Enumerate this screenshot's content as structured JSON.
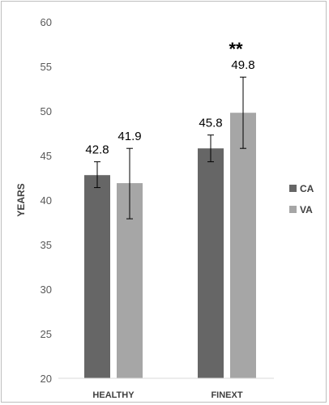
{
  "chart_data": {
    "type": "bar",
    "title": "",
    "xlabel": "",
    "ylabel": "YEARS",
    "ylim": [
      20,
      60
    ],
    "yticks": [
      20,
      25,
      30,
      35,
      40,
      45,
      50,
      55,
      60
    ],
    "grid": false,
    "legend_position": "right",
    "categories": [
      "HEALTHY",
      "FINEXT"
    ],
    "series": [
      {
        "name": "CA",
        "color": "#666666",
        "values": [
          42.8,
          45.8
        ],
        "error": [
          [
            41.4,
            44.3
          ],
          [
            44.3,
            47.3
          ]
        ],
        "labels": [
          "42.8",
          "45.8"
        ]
      },
      {
        "name": "VA",
        "color": "#a6a6a6",
        "values": [
          41.9,
          49.8
        ],
        "error": [
          [
            37.9,
            45.8
          ],
          [
            45.8,
            53.8
          ]
        ],
        "labels": [
          "41.9",
          "49.8"
        ]
      }
    ],
    "annotations": [
      {
        "category": "FINEXT",
        "text": "**"
      }
    ]
  }
}
